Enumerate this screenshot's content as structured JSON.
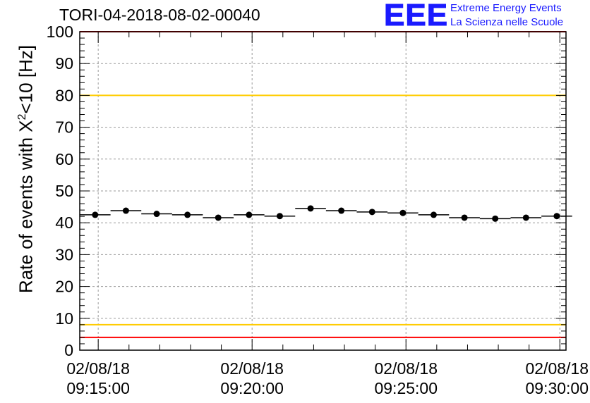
{
  "header": {
    "run_title": "TORI-04-2018-08-02-00040",
    "logo_text": "EEE",
    "logo_line1": "Extreme Energy Events",
    "logo_line2": "La Scienza nelle Scuole"
  },
  "chart_data": {
    "type": "scatter",
    "title": "TORI-04-2018-08-02-00040",
    "xlabel": "",
    "ylabel_prefix": "Rate of events with ",
    "ylabel_symbol": "X",
    "ylabel_sup": "2",
    "ylabel_suffix": "<10 [Hz]",
    "ylim": [
      0,
      100
    ],
    "yticks": [
      0,
      10,
      20,
      30,
      40,
      50,
      60,
      70,
      80,
      90,
      100
    ],
    "xlim_minutes": [
      -0.6,
      15.2
    ],
    "xticks": [
      {
        "minute": 0,
        "date": "02/08/18",
        "time": "09:15:00"
      },
      {
        "minute": 5,
        "date": "02/08/18",
        "time": "09:20:00"
      },
      {
        "minute": 10,
        "date": "02/08/18",
        "time": "09:25:00"
      },
      {
        "minute": 15,
        "date": "02/08/18",
        "time": "09:30:00"
      }
    ],
    "grid": true,
    "bin_half_width_minutes": 0.5,
    "points": [
      {
        "x": -0.1,
        "y": 42.5
      },
      {
        "x": 0.9,
        "y": 43.8
      },
      {
        "x": 1.9,
        "y": 42.8
      },
      {
        "x": 2.9,
        "y": 42.5
      },
      {
        "x": 3.9,
        "y": 41.6
      },
      {
        "x": 4.9,
        "y": 42.5
      },
      {
        "x": 5.9,
        "y": 42.1
      },
      {
        "x": 6.9,
        "y": 44.5
      },
      {
        "x": 7.9,
        "y": 43.8
      },
      {
        "x": 8.9,
        "y": 43.4
      },
      {
        "x": 9.9,
        "y": 43.1
      },
      {
        "x": 10.9,
        "y": 42.5
      },
      {
        "x": 11.9,
        "y": 41.6
      },
      {
        "x": 12.9,
        "y": 41.3
      },
      {
        "x": 13.9,
        "y": 41.6
      },
      {
        "x": 14.9,
        "y": 42.1
      }
    ],
    "reference_lines": [
      {
        "y": 100,
        "color": "#ff0000"
      },
      {
        "y": 80,
        "color": "#ffcc00"
      },
      {
        "y": 8,
        "color": "#ffcc00"
      },
      {
        "y": 4,
        "color": "#ff0000"
      }
    ]
  }
}
